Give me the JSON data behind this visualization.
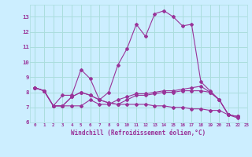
{
  "xlabel": "Windchill (Refroidissement éolien,°C)",
  "ylabel": "",
  "xlim": [
    -0.5,
    23
  ],
  "ylim": [
    6,
    13.8
  ],
  "yticks": [
    6,
    7,
    8,
    9,
    10,
    11,
    12,
    13
  ],
  "xticks": [
    0,
    1,
    2,
    3,
    4,
    5,
    6,
    7,
    8,
    9,
    10,
    11,
    12,
    13,
    14,
    15,
    16,
    17,
    18,
    19,
    20,
    21,
    22,
    23
  ],
  "background_color": "#cceeff",
  "grid_color": "#aadddd",
  "line_color": "#993399",
  "series": [
    [
      8.3,
      8.1,
      7.1,
      7.8,
      7.8,
      9.5,
      8.9,
      7.5,
      8.0,
      9.8,
      10.9,
      12.5,
      11.7,
      13.2,
      13.4,
      13.0,
      12.4,
      12.5,
      8.7,
      8.1,
      7.5,
      6.5,
      6.3
    ],
    [
      8.3,
      8.1,
      7.1,
      7.1,
      7.1,
      7.1,
      7.5,
      7.2,
      7.2,
      7.5,
      7.7,
      7.9,
      7.9,
      8.0,
      8.1,
      8.1,
      8.2,
      8.3,
      8.4,
      8.0,
      7.5,
      6.5,
      6.4
    ],
    [
      8.3,
      8.1,
      7.1,
      7.1,
      7.7,
      8.0,
      7.8,
      7.5,
      7.3,
      7.2,
      7.2,
      7.2,
      7.2,
      7.1,
      7.1,
      7.0,
      7.0,
      6.9,
      6.9,
      6.8,
      6.8,
      6.5,
      6.4
    ],
    [
      8.3,
      8.1,
      7.1,
      7.1,
      7.7,
      8.0,
      7.8,
      7.5,
      7.3,
      7.2,
      7.5,
      7.8,
      7.8,
      7.9,
      8.0,
      8.0,
      8.1,
      8.1,
      8.1,
      8.0,
      7.5,
      6.5,
      6.4
    ]
  ]
}
